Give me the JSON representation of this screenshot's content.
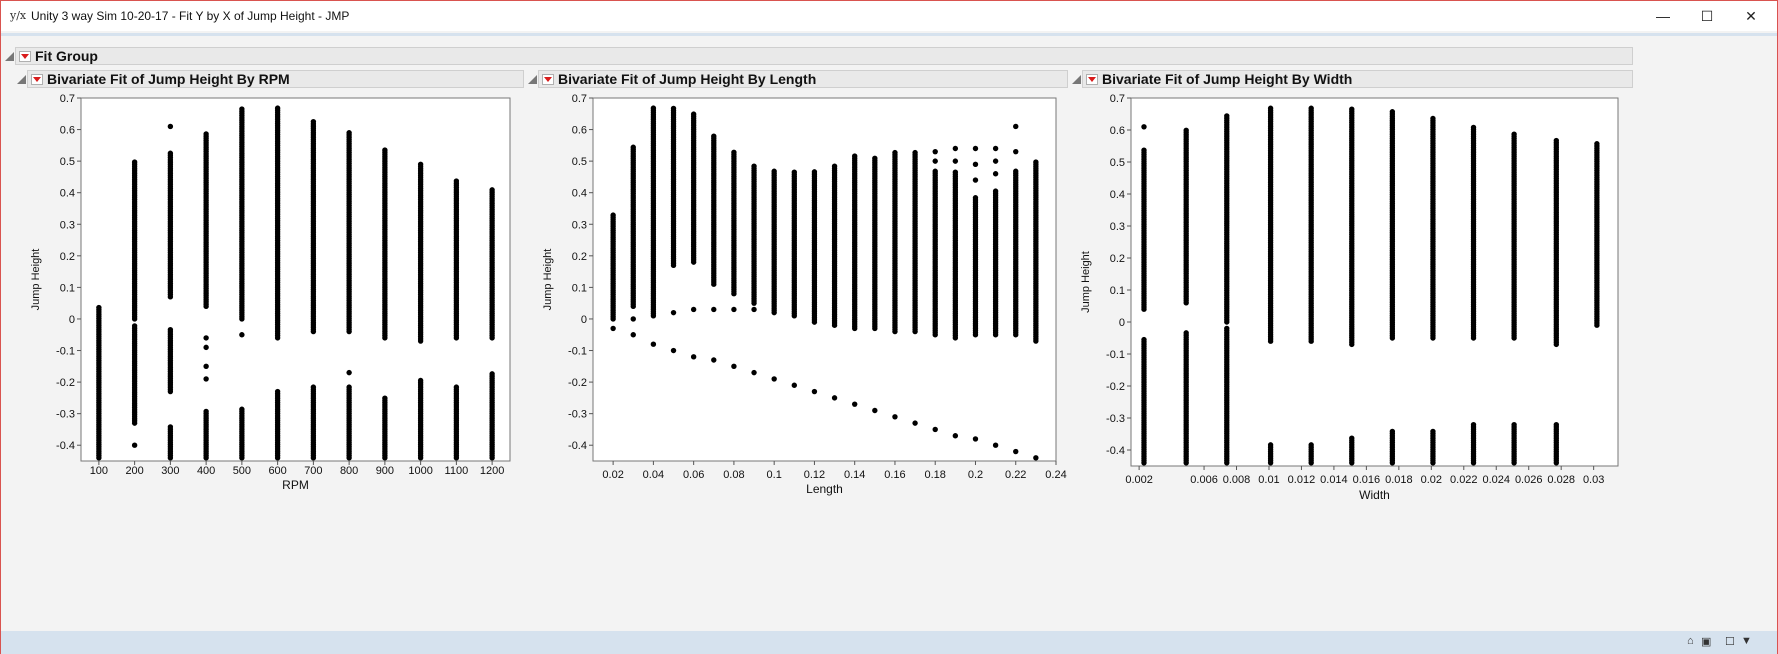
{
  "window": {
    "title": "Unity 3 way Sim 10-20-17 - Fit Y by X of Jump Height - JMP",
    "app_icon": "y/x",
    "controls": {
      "minimize": "—",
      "maximize": "☐",
      "close": "✕"
    }
  },
  "report": {
    "group_title": "Fit Group"
  },
  "icons": {
    "disclosure": "disclosure-triangle-icon",
    "menu": "red-triangle-menu-icon",
    "status_home": "home-icon",
    "status_dropdown": "dropdown-icon"
  },
  "colors": {
    "points": "#000000",
    "menu_triangle": "#d91c1c",
    "status_bar": "#d6e2ee"
  },
  "chart_data": [
    {
      "type": "scatter",
      "title": "Bivariate Fit of Jump Height By RPM",
      "xlabel": "RPM",
      "ylabel": "Jump Height",
      "xlim": [
        50,
        1250
      ],
      "ylim": [
        -0.45,
        0.7
      ],
      "xticks": [
        "100",
        "200",
        "300",
        "400",
        "500",
        "600",
        "700",
        "800",
        "900",
        "1000",
        "1100",
        "1200"
      ],
      "yticks": [
        "0.7",
        "0.6",
        "0.5",
        "0.4",
        "0.3",
        "0.2",
        "0.1",
        "0",
        "-0.1",
        "-0.2",
        "-0.3",
        "-0.4"
      ],
      "columns": [
        {
          "x": 100,
          "ranges": [
            [
              -0.44,
              0.04
            ]
          ]
        },
        {
          "x": 200,
          "ranges": [
            [
              -0.33,
              -0.02
            ],
            [
              0.0,
              0.5
            ]
          ],
          "points": [
            -0.4
          ]
        },
        {
          "x": 300,
          "ranges": [
            [
              -0.44,
              -0.34
            ],
            [
              -0.23,
              -0.03
            ],
            [
              0.07,
              0.53
            ]
          ],
          "points": [
            0.61
          ]
        },
        {
          "x": 400,
          "ranges": [
            [
              -0.44,
              -0.29
            ],
            [
              0.04,
              0.59
            ]
          ],
          "points": [
            -0.06,
            -0.09,
            -0.15,
            -0.19
          ]
        },
        {
          "x": 500,
          "ranges": [
            [
              -0.44,
              -0.28
            ],
            [
              0.0,
              0.67
            ]
          ],
          "points": [
            -0.05
          ]
        },
        {
          "x": 600,
          "ranges": [
            [
              -0.44,
              -0.23
            ],
            [
              -0.06,
              0.67
            ]
          ]
        },
        {
          "x": 700,
          "ranges": [
            [
              -0.44,
              -0.21
            ],
            [
              -0.04,
              0.63
            ]
          ]
        },
        {
          "x": 800,
          "ranges": [
            [
              -0.44,
              -0.21
            ],
            [
              -0.04,
              0.59
            ]
          ],
          "points": [
            -0.17
          ]
        },
        {
          "x": 900,
          "ranges": [
            [
              -0.44,
              -0.25
            ],
            [
              -0.06,
              0.54
            ]
          ]
        },
        {
          "x": 1000,
          "ranges": [
            [
              -0.44,
              -0.19
            ],
            [
              -0.07,
              0.49
            ]
          ]
        },
        {
          "x": 1100,
          "ranges": [
            [
              -0.44,
              -0.21
            ],
            [
              -0.06,
              0.44
            ]
          ]
        },
        {
          "x": 1200,
          "ranges": [
            [
              -0.44,
              -0.17
            ],
            [
              -0.06,
              0.41
            ]
          ]
        }
      ]
    },
    {
      "type": "scatter",
      "title": "Bivariate Fit of Jump Height By Length",
      "xlabel": "Length",
      "ylabel": "Jump Height",
      "xlim": [
        0.01,
        0.24
      ],
      "ylim": [
        -0.45,
        0.7
      ],
      "xticks": [
        "0.02",
        "0.04",
        "0.06",
        "0.08",
        "0.1",
        "0.12",
        "0.14",
        "0.16",
        "0.18",
        "0.2",
        "0.22",
        "0.24"
      ],
      "yticks": [
        "0.7",
        "0.6",
        "0.5",
        "0.4",
        "0.3",
        "0.2",
        "0.1",
        "0",
        "-0.1",
        "-0.2",
        "-0.3",
        "-0.4"
      ],
      "columns": [
        {
          "x": 0.02,
          "ranges": [
            [
              0.0,
              0.33
            ]
          ],
          "points": [
            -0.03
          ]
        },
        {
          "x": 0.03,
          "ranges": [
            [
              0.04,
              0.55
            ]
          ],
          "points": [
            -0.05,
            0.0
          ]
        },
        {
          "x": 0.04,
          "ranges": [
            [
              0.01,
              0.67
            ]
          ],
          "points": [
            -0.08
          ]
        },
        {
          "x": 0.05,
          "ranges": [
            [
              0.17,
              0.67
            ]
          ],
          "points": [
            -0.1,
            0.02
          ]
        },
        {
          "x": 0.06,
          "ranges": [
            [
              0.18,
              0.65
            ]
          ],
          "points": [
            -0.12,
            0.03
          ]
        },
        {
          "x": 0.07,
          "ranges": [
            [
              0.11,
              0.58
            ]
          ],
          "points": [
            -0.13,
            0.03
          ]
        },
        {
          "x": 0.08,
          "ranges": [
            [
              0.08,
              0.53
            ]
          ],
          "points": [
            -0.15,
            0.03
          ]
        },
        {
          "x": 0.09,
          "ranges": [
            [
              0.05,
              0.49
            ]
          ],
          "points": [
            -0.17,
            0.03
          ]
        },
        {
          "x": 0.1,
          "ranges": [
            [
              0.02,
              0.47
            ]
          ],
          "points": [
            -0.19
          ]
        },
        {
          "x": 0.11,
          "ranges": [
            [
              0.01,
              0.47
            ]
          ],
          "points": [
            -0.21
          ]
        },
        {
          "x": 0.12,
          "ranges": [
            [
              -0.01,
              0.47
            ]
          ],
          "points": [
            -0.23
          ]
        },
        {
          "x": 0.13,
          "ranges": [
            [
              -0.02,
              0.49
            ]
          ],
          "points": [
            -0.25
          ]
        },
        {
          "x": 0.14,
          "ranges": [
            [
              -0.03,
              0.52
            ]
          ],
          "points": [
            -0.27
          ]
        },
        {
          "x": 0.15,
          "ranges": [
            [
              -0.03,
              0.51
            ]
          ],
          "points": [
            -0.29
          ]
        },
        {
          "x": 0.16,
          "ranges": [
            [
              -0.04,
              0.53
            ]
          ],
          "points": [
            -0.31
          ]
        },
        {
          "x": 0.17,
          "ranges": [
            [
              -0.04,
              0.53
            ]
          ],
          "points": [
            -0.33
          ]
        },
        {
          "x": 0.18,
          "ranges": [
            [
              -0.05,
              0.47
            ]
          ],
          "points": [
            0.5,
            0.53,
            -0.35
          ]
        },
        {
          "x": 0.19,
          "ranges": [
            [
              -0.06,
              0.47
            ]
          ],
          "points": [
            0.5,
            0.54,
            -0.37
          ]
        },
        {
          "x": 0.2,
          "ranges": [
            [
              -0.05,
              0.39
            ]
          ],
          "points": [
            0.44,
            0.49,
            0.54,
            -0.38
          ]
        },
        {
          "x": 0.21,
          "ranges": [
            [
              -0.05,
              0.41
            ]
          ],
          "points": [
            0.46,
            0.5,
            0.54,
            -0.4
          ]
        },
        {
          "x": 0.22,
          "ranges": [
            [
              -0.05,
              0.47
            ]
          ],
          "points": [
            0.53,
            0.61,
            -0.42
          ]
        },
        {
          "x": 0.23,
          "ranges": [
            [
              -0.07,
              0.5
            ]
          ],
          "points": [
            -0.44
          ]
        }
      ]
    },
    {
      "type": "scatter",
      "title": "Bivariate Fit of Jump Height By Width",
      "xlabel": "Width",
      "ylabel": "Jump Height",
      "xlim": [
        0.0015,
        0.0315
      ],
      "ylim": [
        -0.45,
        0.7
      ],
      "xticks": [
        "0.002",
        "0.006",
        "0.008",
        "0.01",
        "0.012",
        "0.014",
        "0.016",
        "0.018",
        "0.02",
        "0.022",
        "0.024",
        "0.026",
        "0.028",
        "0.03"
      ],
      "xtick_values": [
        0.002,
        0.006,
        0.008,
        0.01,
        0.012,
        0.014,
        0.016,
        0.018,
        0.02,
        0.022,
        0.024,
        0.026,
        0.028,
        0.03
      ],
      "yticks": [
        "0.7",
        "0.6",
        "0.5",
        "0.4",
        "0.3",
        "0.2",
        "0.1",
        "0",
        "-0.1",
        "-0.2",
        "-0.3",
        "-0.4"
      ],
      "columns": [
        {
          "x": 0.0023,
          "ranges": [
            [
              -0.44,
              -0.05
            ],
            [
              0.04,
              0.54
            ]
          ],
          "points": [
            0.61
          ]
        },
        {
          "x": 0.0049,
          "ranges": [
            [
              -0.44,
              -0.03
            ],
            [
              0.06,
              0.6
            ]
          ]
        },
        {
          "x": 0.0074,
          "ranges": [
            [
              -0.44,
              -0.02
            ],
            [
              0.0,
              0.65
            ]
          ]
        },
        {
          "x": 0.0101,
          "ranges": [
            [
              -0.44,
              -0.38
            ],
            [
              -0.06,
              0.67
            ]
          ]
        },
        {
          "x": 0.0126,
          "ranges": [
            [
              -0.44,
              -0.38
            ],
            [
              -0.06,
              0.67
            ]
          ]
        },
        {
          "x": 0.0151,
          "ranges": [
            [
              -0.44,
              -0.36
            ],
            [
              -0.07,
              0.67
            ]
          ]
        },
        {
          "x": 0.0176,
          "ranges": [
            [
              -0.44,
              -0.34
            ],
            [
              -0.05,
              0.66
            ]
          ]
        },
        {
          "x": 0.0201,
          "ranges": [
            [
              -0.44,
              -0.34
            ],
            [
              -0.05,
              0.64
            ]
          ]
        },
        {
          "x": 0.0226,
          "ranges": [
            [
              -0.44,
              -0.32
            ],
            [
              -0.05,
              0.61
            ]
          ]
        },
        {
          "x": 0.0251,
          "ranges": [
            [
              -0.44,
              -0.32
            ],
            [
              -0.05,
              0.59
            ]
          ]
        },
        {
          "x": 0.0277,
          "ranges": [
            [
              -0.44,
              -0.32
            ],
            [
              -0.07,
              0.57
            ]
          ]
        },
        {
          "x": 0.0302,
          "ranges": [
            [
              -0.01,
              0.56
            ]
          ]
        }
      ]
    }
  ]
}
